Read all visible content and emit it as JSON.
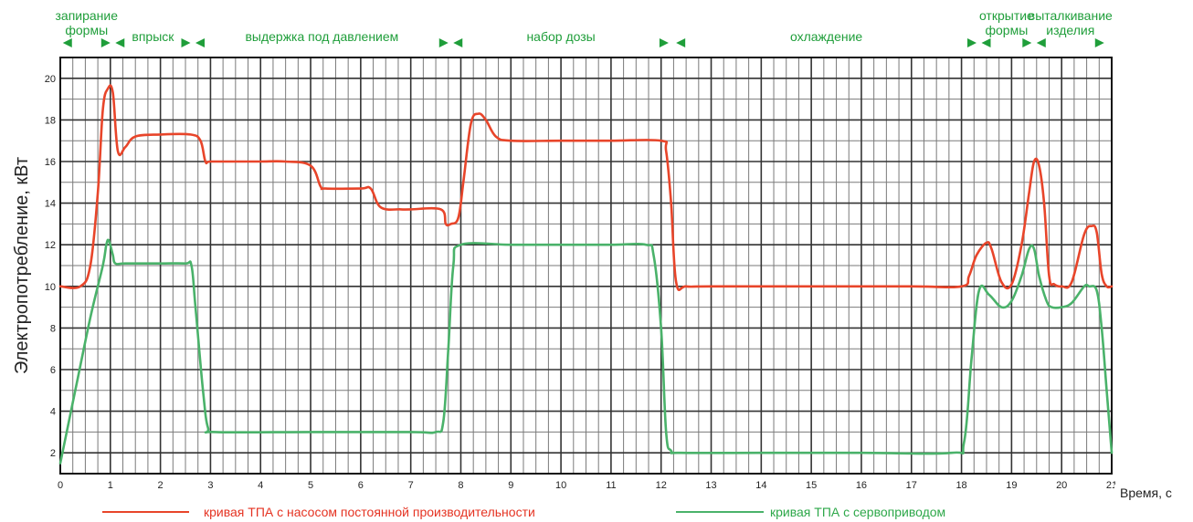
{
  "chart_data": {
    "type": "line",
    "title": "",
    "xlabel": "Время, с",
    "ylabel": "Электропотребление, кВт",
    "xlim": [
      0,
      21
    ],
    "ylim": [
      1,
      21
    ],
    "x_ticks": [
      0,
      1,
      2,
      3,
      4,
      5,
      6,
      7,
      8,
      9,
      10,
      11,
      12,
      13,
      14,
      15,
      16,
      17,
      18,
      19,
      20,
      21
    ],
    "y_ticks": [
      2,
      4,
      6,
      8,
      10,
      12,
      14,
      16,
      18,
      20
    ],
    "grid": true,
    "legend_position": "bottom",
    "phases": [
      {
        "lines": [
          "запирание",
          "формы"
        ],
        "start": 0.05,
        "end": 1.0
      },
      {
        "lines": [
          "впрыск"
        ],
        "start": 1.1,
        "end": 2.6
      },
      {
        "lines": [
          "выдержка под давлением"
        ],
        "start": 2.7,
        "end": 7.75
      },
      {
        "lines": [
          "набор дозы"
        ],
        "start": 7.85,
        "end": 12.15
      },
      {
        "lines": [
          "охлаждение"
        ],
        "start": 12.3,
        "end": 18.3
      },
      {
        "lines": [
          "открытие",
          "формы"
        ],
        "start": 18.4,
        "end": 19.4
      },
      {
        "lines": [
          "выталкивание",
          "изделия"
        ],
        "start": 19.5,
        "end": 20.85
      }
    ],
    "series": [
      {
        "name": "кривая ТПА с насосом постоянной производительности",
        "color": "#e8452a",
        "x": [
          0,
          0.4,
          0.6,
          0.75,
          0.85,
          0.95,
          1.05,
          1.15,
          1.3,
          1.5,
          2.0,
          2.6,
          2.8,
          2.9,
          3.0,
          3.5,
          4.0,
          4.5,
          5.0,
          5.2,
          5.3,
          6.0,
          6.2,
          6.4,
          6.8,
          7.0,
          7.6,
          7.7,
          7.8,
          7.95,
          8.05,
          8.2,
          8.35,
          8.5,
          8.7,
          9.0,
          10.0,
          11.0,
          12.0,
          12.1,
          12.2,
          12.3,
          12.5,
          13.0,
          15.0,
          17.0,
          18.0,
          18.15,
          18.3,
          18.5,
          18.6,
          18.8,
          19.0,
          19.2,
          19.35,
          19.45,
          19.55,
          19.65,
          19.75,
          19.85,
          20.0,
          20.2,
          20.45,
          20.6,
          20.7,
          20.8,
          20.9,
          21.0
        ],
        "y": [
          10,
          10,
          11,
          14.5,
          18.5,
          19.5,
          19.3,
          16.5,
          16.7,
          17.2,
          17.3,
          17.3,
          17.0,
          16.0,
          16.0,
          16.0,
          16.0,
          16.0,
          15.8,
          14.8,
          14.7,
          14.7,
          14.7,
          13.8,
          13.7,
          13.7,
          13.7,
          13.0,
          13.0,
          13.3,
          15.0,
          17.8,
          18.3,
          18.0,
          17.2,
          17.0,
          17.0,
          17.0,
          17.0,
          16.5,
          14.0,
          10.2,
          10.0,
          10.0,
          10.0,
          10.0,
          10.0,
          10.5,
          11.5,
          12.1,
          11.8,
          10.2,
          10.1,
          12.0,
          14.5,
          16.0,
          15.8,
          14.0,
          10.5,
          10.1,
          10.0,
          10.2,
          12.5,
          12.9,
          12.6,
          10.6,
          10.0,
          10.0
        ]
      },
      {
        "name": "кривая ТПА с сервоприводом",
        "color": "#4ab26a",
        "x": [
          0,
          0.3,
          0.6,
          0.85,
          0.92,
          0.97,
          1.05,
          1.1,
          1.3,
          2.0,
          2.5,
          2.62,
          2.7,
          2.85,
          2.95,
          3.1,
          5.0,
          7.0,
          7.5,
          7.65,
          7.75,
          7.85,
          8.0,
          9.0,
          10.0,
          11.0,
          11.7,
          11.85,
          12.0,
          12.1,
          12.2,
          12.4,
          14.0,
          16.0,
          17.8,
          18.05,
          18.2,
          18.35,
          18.55,
          18.8,
          19.0,
          19.2,
          19.35,
          19.45,
          19.55,
          19.7,
          19.8,
          20.0,
          20.2,
          20.45,
          20.55,
          20.7,
          20.8,
          20.9,
          21.0
        ],
        "y": [
          1.5,
          5.0,
          8.5,
          11.0,
          12.0,
          12.2,
          11.5,
          11.1,
          11.1,
          11.1,
          11.1,
          11.0,
          9.0,
          5.0,
          3.2,
          3.0,
          3.0,
          3.0,
          3.0,
          3.5,
          7.0,
          11.0,
          12.0,
          12.0,
          12.0,
          12.0,
          12.0,
          11.5,
          8.0,
          3.0,
          2.1,
          2.0,
          2.0,
          2.0,
          2.0,
          2.5,
          6.5,
          9.8,
          9.6,
          9.0,
          9.3,
          10.5,
          11.8,
          11.8,
          10.5,
          9.3,
          9.0,
          9.0,
          9.2,
          10.0,
          10.0,
          9.8,
          8.0,
          5.0,
          2.0
        ]
      }
    ]
  }
}
